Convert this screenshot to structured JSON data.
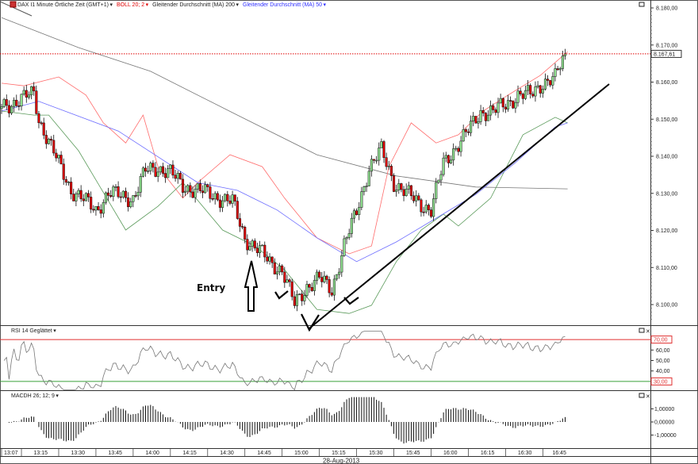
{
  "header": {
    "instrument_label": "DAX I1 Minute Örtliche Zeit (GMT+1)",
    "bollinger_label": "BOLL 20; 2",
    "ma200_label": "Gleitender Durchschnitt (MA) 200",
    "ma50_label": "Gleitender Durchschnitt (MA) 50"
  },
  "colors": {
    "up": "#8fe08f",
    "down": "#e00000",
    "bb_upper": "#ff6b6b",
    "bb_lower": "#5a9a5a",
    "ma50": "#6b6bff",
    "ma200": "#777777",
    "rsi_70": "#e03030",
    "rsi_30": "#3aa03a",
    "last_price": "#e00000"
  },
  "price_axis": {
    "ticks": [
      "8.180,00",
      "8.170,00",
      "8.160,00",
      "8.150,00",
      "8.140,00",
      "8.130,00",
      "8.120,00",
      "8.110,00",
      "8.100,00"
    ],
    "last_price_label": "8.167,61"
  },
  "rsi_panel": {
    "label": "RSI 14 Geglättet",
    "ticks": [
      "60,00",
      "50,00",
      "40,00"
    ],
    "upper_label": "70,00",
    "lower_label": "30,00"
  },
  "macd_panel": {
    "label": "MACDH 26; 12; 9",
    "ticks": [
      "1,00000",
      "0,00000",
      "-1,00000"
    ]
  },
  "time_axis": {
    "labels": [
      "13:07",
      "13:15",
      "13:30",
      "13:45",
      "14:00",
      "14:15",
      "14:30",
      "14:45",
      "15:00",
      "15:15",
      "15:30",
      "15:45",
      "16:00",
      "16:15",
      "16:30",
      "16:45"
    ],
    "date": "28-Aug-2013"
  },
  "annotations": {
    "entry_label": "Entry"
  },
  "chart_data": {
    "type": "candlestick",
    "ylim": [
      8094,
      8181
    ],
    "last_price": 8167.61,
    "closes_5min": {
      "times": [
        "13:07",
        "13:15",
        "13:20",
        "13:22",
        "13:30",
        "13:35",
        "13:45",
        "13:50",
        "14:00",
        "14:05",
        "14:10",
        "14:15",
        "14:20",
        "14:30",
        "14:40",
        "14:45",
        "14:50",
        "14:55",
        "15:00",
        "15:05",
        "15:10",
        "15:15",
        "15:20",
        "15:25",
        "15:30",
        "15:35",
        "15:40",
        "15:45",
        "15:50",
        "15:55",
        "16:00",
        "16:05",
        "16:10",
        "16:15",
        "16:20",
        "16:25",
        "16:30",
        "16:35",
        "16:40",
        "16:45",
        "16:50",
        "16:54"
      ],
      "values": [
        8153.3,
        8155.4,
        8157,
        8150,
        8138,
        8131,
        8125.5,
        8130,
        8128.7,
        8136,
        8137,
        8135.5,
        8132,
        8130,
        8127.6,
        8118,
        8115,
        8111.5,
        8109.4,
        8100,
        8105,
        8107,
        8104,
        8116,
        8125,
        8137,
        8141.5,
        8133,
        8130,
        8127.6,
        8125.5,
        8138,
        8142.6,
        8146.8,
        8152,
        8152,
        8154,
        8156.5,
        8156.5,
        8160,
        8161,
        8167.6
      ]
    },
    "bollinger_upper": {
      "times": [
        "13:07",
        "13:16",
        "13:30",
        "13:41",
        "13:48",
        "13:57",
        "14:04",
        "14:10",
        "14:20",
        "14:26",
        "14:39",
        "14:52",
        "15:01",
        "15:14",
        "15:27",
        "15:36",
        "15:43",
        "15:52",
        "16:02",
        "16:11",
        "16:21",
        "16:31",
        "16:44",
        "16:55"
      ],
      "values": [
        8159.7,
        8159,
        8161.4,
        8156.5,
        8149,
        8143.6,
        8151.1,
        8137.2,
        8128.7,
        8132.9,
        8140.4,
        8137.2,
        8128.7,
        8118,
        8113.7,
        8115.8,
        8137.2,
        8149,
        8143.6,
        8145.8,
        8152.2,
        8156.5,
        8161.8,
        8168.2
      ]
    },
    "bollinger_lower": {
      "times": [
        "13:07",
        "13:20",
        "13:26",
        "13:38",
        "13:57",
        "14:10",
        "14:20",
        "14:36",
        "14:49",
        "15:01",
        "15:14",
        "15:27",
        "15:36",
        "15:46",
        "15:56",
        "16:05",
        "16:11",
        "16:24",
        "16:37",
        "16:50",
        "16:55"
      ],
      "values": [
        8152.2,
        8151.1,
        8151.1,
        8141.5,
        8120.1,
        8126.5,
        8132.9,
        8120.1,
        8115.8,
        8109.4,
        8098.7,
        8097.6,
        8099.8,
        8111.6,
        8120.1,
        8124.4,
        8121.2,
        8128.7,
        8145.8,
        8150.5,
        8149
      ]
    },
    "ma50": {
      "times": [
        "13:07",
        "13:22",
        "13:54",
        "14:26",
        "14:42",
        "14:58",
        "15:14",
        "15:30",
        "15:46",
        "16:02",
        "16:18",
        "16:34",
        "16:50",
        "16:55"
      ],
      "values": [
        8152.2,
        8154.8,
        8146.8,
        8132.9,
        8130.8,
        8125.5,
        8118,
        8111.6,
        8116.9,
        8123.3,
        8129.7,
        8138.3,
        8147.9,
        8149
      ]
    },
    "ma200": {
      "times": [
        "13:07",
        "13:38",
        "14:07",
        "14:42",
        "15:14",
        "15:46",
        "16:18",
        "16:55"
      ],
      "values": [
        8177.4,
        8169.3,
        8162.9,
        8151.1,
        8140.4,
        8134.7,
        8131.7,
        8131.2
      ]
    },
    "rsi_levels": [
      70,
      30
    ],
    "rsi_range": [
      20,
      80
    ],
    "macd_range": [
      -2,
      2
    ]
  }
}
